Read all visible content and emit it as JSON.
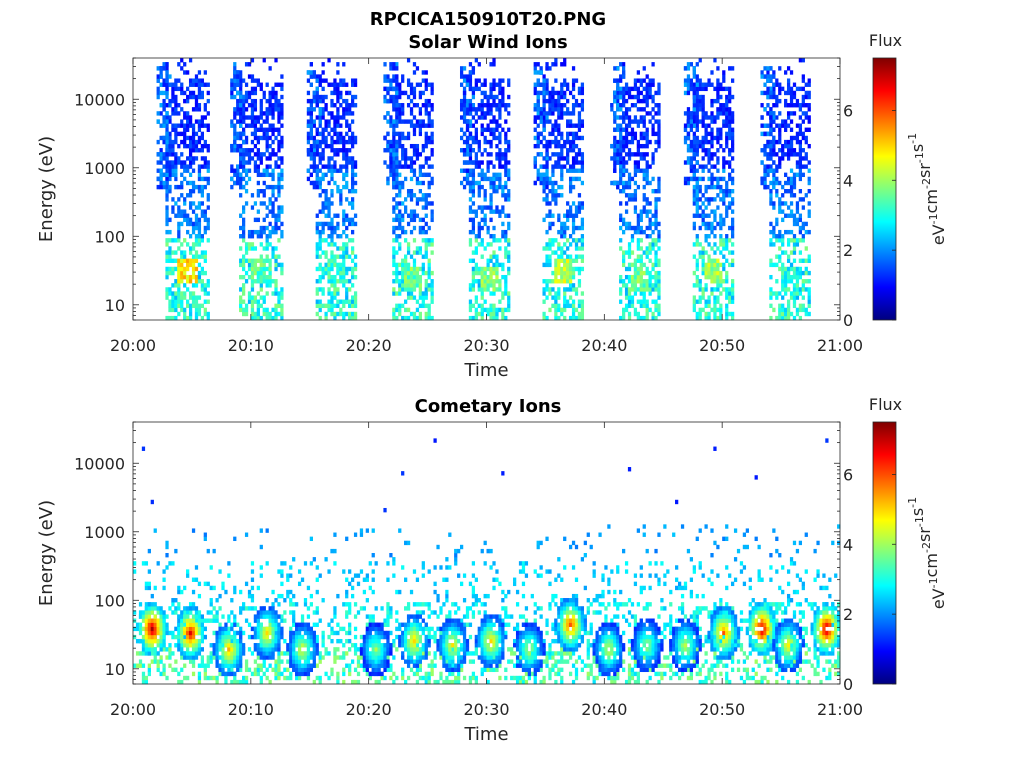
{
  "figure_title": "RPCICA150910T20.PNG",
  "colormap": [
    "#00007f",
    "#0000ff",
    "#007fff",
    "#00ffff",
    "#7fff7f",
    "#ffff00",
    "#ff7f00",
    "#ff0000",
    "#7f0000"
  ],
  "chart_data": [
    {
      "type": "heatmap",
      "title": "Solar Wind Ions",
      "xlabel": "Time",
      "ylabel": "Energy (eV)",
      "x_ticks": [
        "20:00",
        "20:10",
        "20:20",
        "20:30",
        "20:40",
        "20:50",
        "21:00"
      ],
      "x_range_minutes": [
        0,
        60
      ],
      "y_scale": "log",
      "y_ticks": [
        "10",
        "100",
        "1000",
        "10000"
      ],
      "y_range_eV": [
        6,
        40000
      ],
      "colorbar": {
        "title": "Flux",
        "label_parts": [
          "eV",
          "-1",
          "cm",
          "-2",
          "sr",
          "-1",
          "s",
          "-1"
        ],
        "ticks": [
          "0",
          "2",
          "4",
          "6"
        ],
        "range": [
          0,
          7.5
        ]
      },
      "bursts": [
        {
          "t_start": 2.8,
          "t_end": 6.2,
          "peak_flux": 5.5,
          "peak_eV": 30
        },
        {
          "t_start": 9.0,
          "t_end": 12.5,
          "peak_flux": 4.0,
          "peak_eV": 30
        },
        {
          "t_start": 15.5,
          "t_end": 18.8,
          "peak_flux": 3.8,
          "peak_eV": 30
        },
        {
          "t_start": 22.0,
          "t_end": 25.2,
          "peak_flux": 4.2,
          "peak_eV": 25
        },
        {
          "t_start": 28.5,
          "t_end": 31.8,
          "peak_flux": 4.3,
          "peak_eV": 25
        },
        {
          "t_start": 34.8,
          "t_end": 38.0,
          "peak_flux": 4.8,
          "peak_eV": 30
        },
        {
          "t_start": 41.2,
          "t_end": 44.5,
          "peak_flux": 4.2,
          "peak_eV": 25
        },
        {
          "t_start": 47.5,
          "t_end": 50.8,
          "peak_flux": 4.6,
          "peak_eV": 30
        },
        {
          "t_start": 54.0,
          "t_end": 57.3,
          "peak_flux": 3.6,
          "peak_eV": 25
        }
      ]
    },
    {
      "type": "heatmap",
      "title": "Cometary Ions",
      "xlabel": "Time",
      "ylabel": "Energy (eV)",
      "x_ticks": [
        "20:00",
        "20:10",
        "20:20",
        "20:30",
        "20:40",
        "20:50",
        "21:00"
      ],
      "x_range_minutes": [
        0,
        60
      ],
      "y_scale": "log",
      "y_ticks": [
        "10",
        "100",
        "1000",
        "10000"
      ],
      "y_range_eV": [
        6,
        40000
      ],
      "colorbar": {
        "title": "Flux",
        "label_parts": [
          "eV",
          "-1",
          "cm",
          "-2",
          "sr",
          "-1",
          "s",
          "-1"
        ],
        "ticks": [
          "0",
          "2",
          "4",
          "6"
        ],
        "range": [
          0,
          7.5
        ]
      },
      "hotspots": [
        {
          "t": 1.5,
          "eV": 38,
          "flux": 7.4
        },
        {
          "t": 4.8,
          "eV": 30,
          "flux": 6.8
        },
        {
          "t": 8.0,
          "eV": 18,
          "flux": 5.5
        },
        {
          "t": 11.3,
          "eV": 30,
          "flux": 5.2
        },
        {
          "t": 14.2,
          "eV": 18,
          "flux": 4.8
        },
        {
          "t": 20.5,
          "eV": 18,
          "flux": 4.2
        },
        {
          "t": 23.8,
          "eV": 25,
          "flux": 5.3
        },
        {
          "t": 27.0,
          "eV": 22,
          "flux": 5.0
        },
        {
          "t": 30.3,
          "eV": 25,
          "flux": 5.2
        },
        {
          "t": 33.6,
          "eV": 18,
          "flux": 4.5
        },
        {
          "t": 37.0,
          "eV": 40,
          "flux": 6.2
        },
        {
          "t": 40.2,
          "eV": 18,
          "flux": 4.6
        },
        {
          "t": 43.5,
          "eV": 22,
          "flux": 4.3
        },
        {
          "t": 46.8,
          "eV": 20,
          "flux": 4.5
        },
        {
          "t": 50.0,
          "eV": 30,
          "flux": 6.0
        },
        {
          "t": 53.2,
          "eV": 38,
          "flux": 7.2
        },
        {
          "t": 55.5,
          "eV": 22,
          "flux": 5.0
        },
        {
          "t": 58.8,
          "eV": 38,
          "flux": 7.3
        }
      ]
    }
  ]
}
